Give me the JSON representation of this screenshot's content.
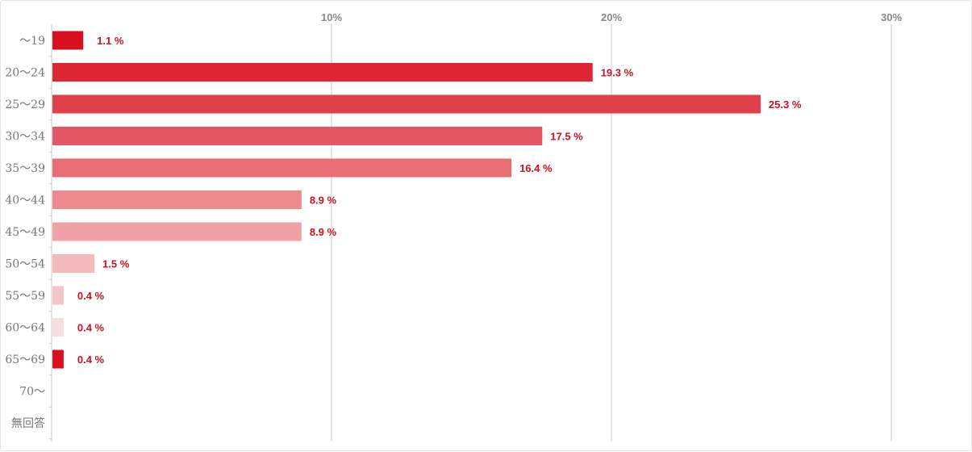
{
  "chart_data": {
    "type": "bar",
    "orientation": "horizontal",
    "categories": [
      "～19",
      "20～24",
      "25～29",
      "30～34",
      "35～39",
      "40～44",
      "45～49",
      "50～54",
      "55～59",
      "60～64",
      "65～69",
      "70～",
      "無回答"
    ],
    "values": [
      1.1,
      19.3,
      25.3,
      17.5,
      16.4,
      8.9,
      8.9,
      1.5,
      0.4,
      0.4,
      0.4,
      null,
      null
    ],
    "value_labels": [
      "1.1 %",
      "19.3 %",
      "25.3 %",
      "17.5 %",
      "16.4 %",
      "8.9 %",
      "8.9 %",
      "1.5 %",
      "0.4 %",
      "0.4 %",
      "0.4 %",
      "",
      ""
    ],
    "x_ticks": [
      {
        "value": 10,
        "label": "10%"
      },
      {
        "value": 20,
        "label": "20%"
      },
      {
        "value": 30,
        "label": "30%"
      }
    ],
    "xlim": [
      0,
      33
    ],
    "grid": true,
    "title": "",
    "xlabel": "",
    "ylabel": "",
    "colors": {
      "bars": [
        "#d70f1e",
        "#de2633",
        "#e1404b",
        "#e45762",
        "#e86d75",
        "#ee8990",
        "#f1a0a5",
        "#f4b9bc",
        "#f2c6c8",
        "#f6dedf",
        "#d70f1e",
        "#ffffff",
        "#ffffff"
      ],
      "value_text": "#cc1020",
      "grid": "#c8c8c8",
      "axis_text": "#888888"
    }
  }
}
